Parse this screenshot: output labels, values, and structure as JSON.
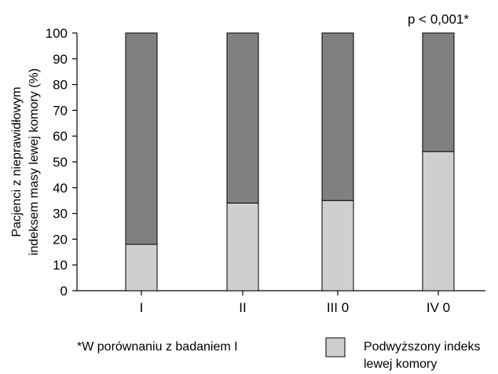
{
  "chart_data": {
    "type": "bar",
    "stacked": true,
    "categories": [
      "I",
      "II",
      "III 0",
      "IV 0"
    ],
    "series": [
      {
        "name": "Podwyższony indeks lewej komory",
        "values": [
          18,
          34,
          35,
          54
        ],
        "color": "#cfcfcf"
      },
      {
        "name": "",
        "values": [
          82,
          66,
          65,
          46
        ],
        "color": "#808080"
      }
    ],
    "ylim": [
      0,
      100
    ],
    "yticks": [
      0,
      10,
      20,
      30,
      40,
      50,
      60,
      70,
      80,
      90,
      100
    ],
    "ylabel_lines": [
      "Pacjenci z nieprawidłowym",
      "indeksem masy lewej komory (%)"
    ],
    "annotation": "p < 0,001*",
    "footnote": "*W porównaniu z badaniem I",
    "legend": {
      "label_lines": [
        "Podwyższony indeks",
        "lewej komory"
      ],
      "color": "#cfcfcf",
      "placement": "bottom-right"
    },
    "grid": false
  }
}
